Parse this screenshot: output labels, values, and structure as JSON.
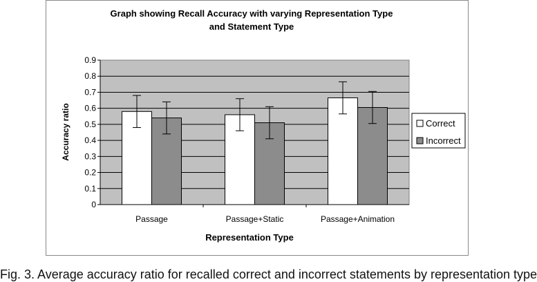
{
  "chart_data": {
    "type": "bar",
    "title": "Graph showing Recall Accuracy with varying Representation Type",
    "subtitle": "and Statement Type",
    "xlabel": "Representation Type",
    "ylabel": "Accuracy ratio",
    "ylim": [
      0,
      0.9
    ],
    "yticks": [
      "0",
      "0.1",
      "0.2",
      "0.3",
      "0.4",
      "0.5",
      "0.6",
      "0.7",
      "0.8",
      "0.9"
    ],
    "grid": true,
    "legend_position": "right",
    "categories": [
      "Passage",
      "Passage+Static",
      "Passage+Animation"
    ],
    "series": [
      {
        "name": "Correct",
        "color": "#ffffff",
        "values": [
          0.58,
          0.56,
          0.665
        ],
        "error": [
          0.1,
          0.1,
          0.1
        ]
      },
      {
        "name": "Incorrect",
        "color": "#8c8c8c",
        "values": [
          0.54,
          0.51,
          0.605
        ],
        "error": [
          0.1,
          0.1,
          0.1
        ]
      }
    ],
    "plot_background": "#c0c0c0"
  },
  "caption": "Fig. 3. Average accuracy ratio for recalled correct and incorrect statements by representation type"
}
